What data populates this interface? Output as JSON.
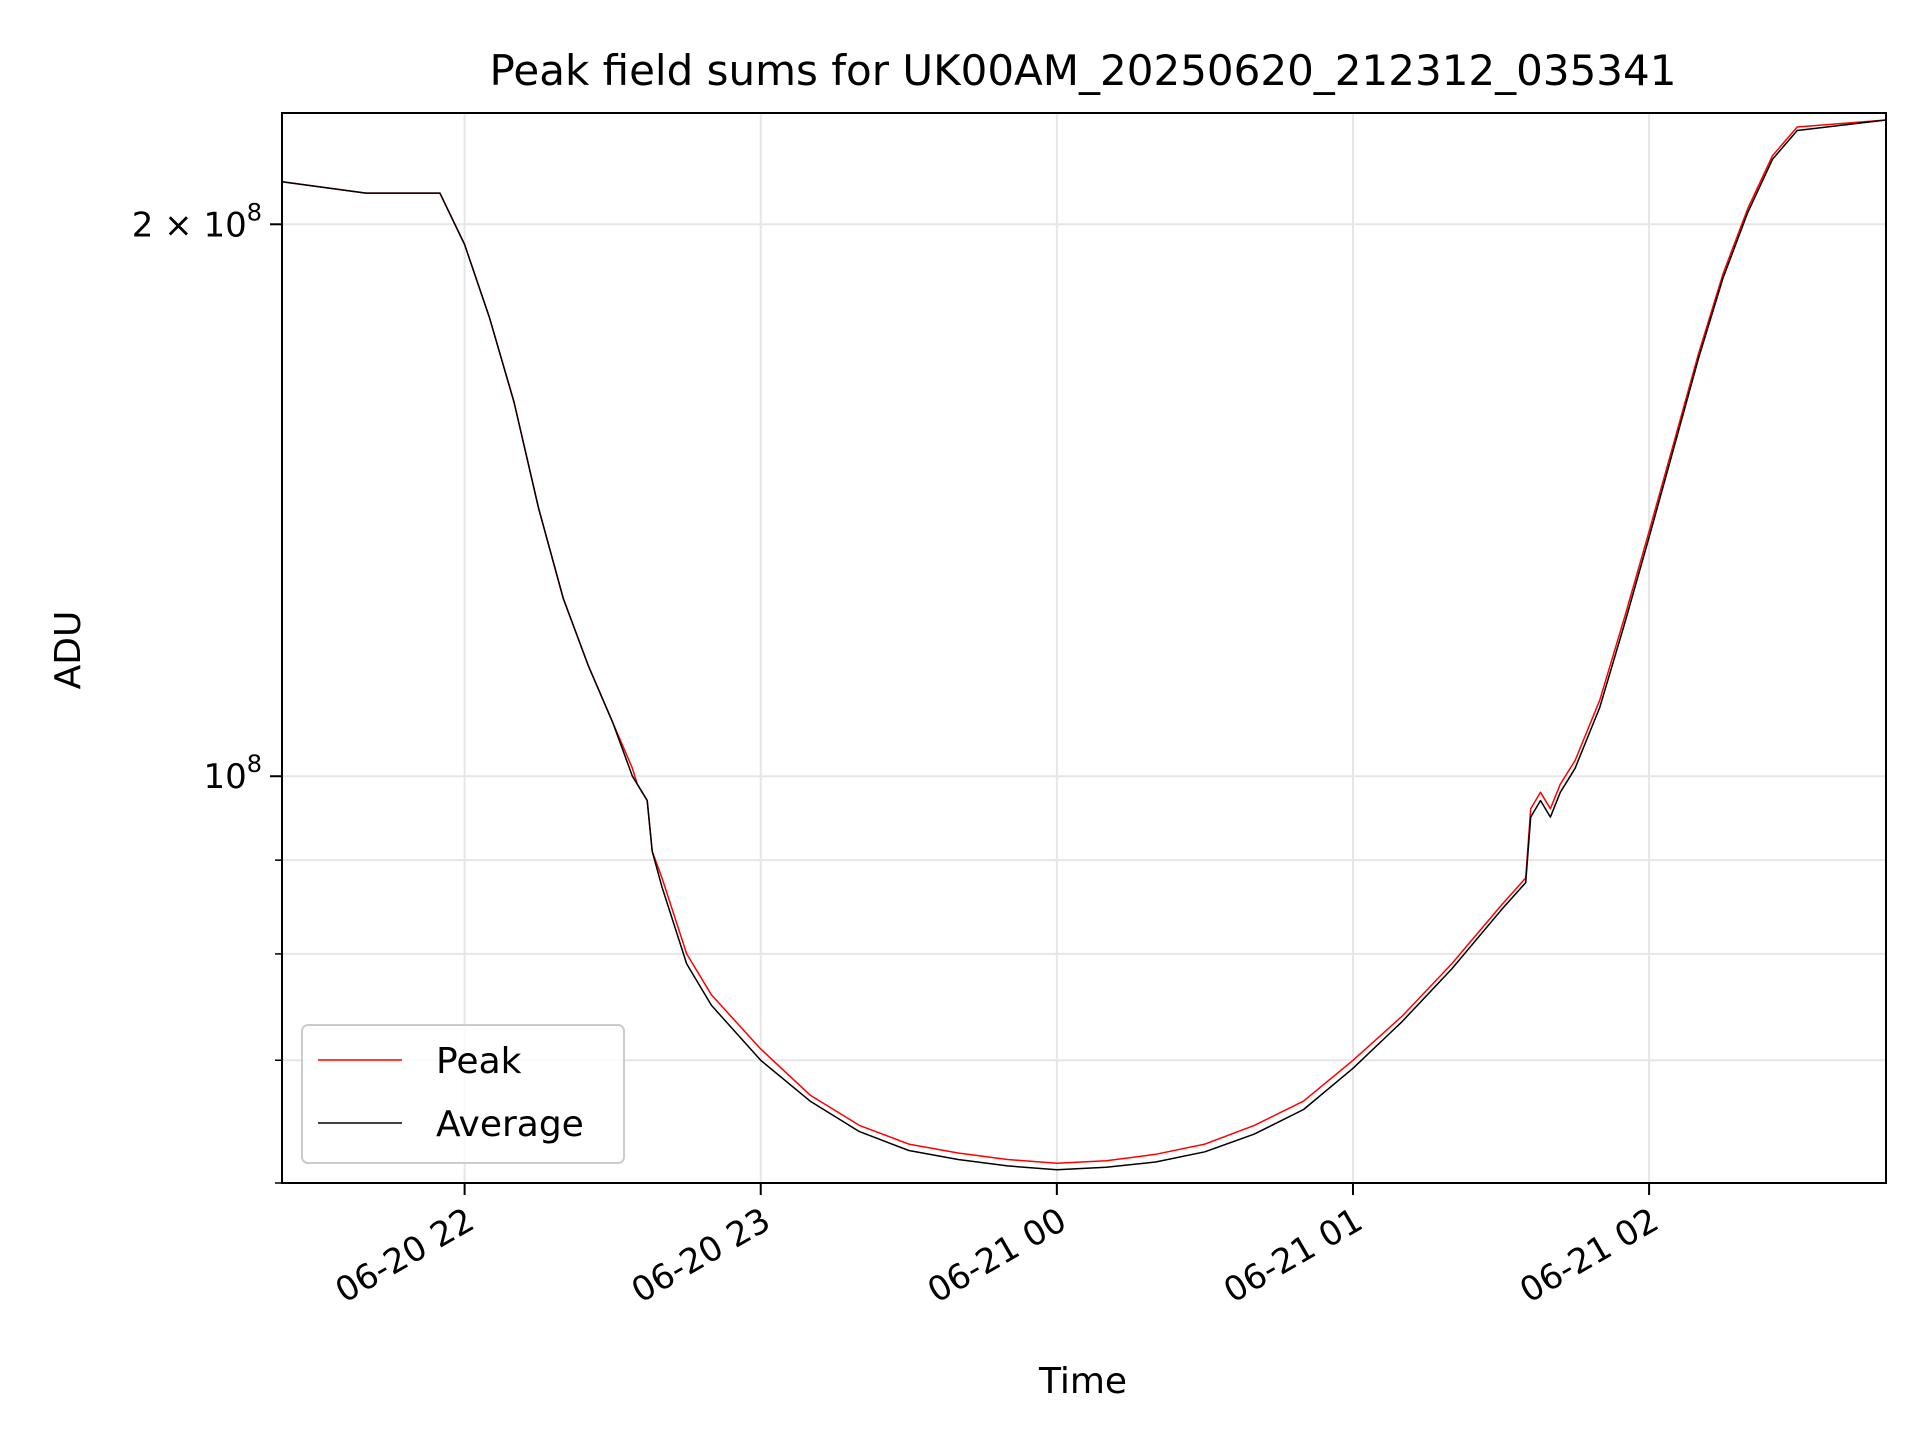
{
  "chart_data": {
    "type": "line",
    "title": "Peak field sums for UK00AM_20250620_212312_035341",
    "xlabel": "Time",
    "ylabel": "ADU",
    "yscale": "log",
    "xlim": [
      "2025-06-20 21:23",
      "2025-06-21 02:48"
    ],
    "ylim": [
      60000000,
      230000000
    ],
    "x_ticks": [
      "06-20 22",
      "06-20 23",
      "06-21 00",
      "06-21 01",
      "06-21 02"
    ],
    "y_ticks": [
      {
        "value": 100000000,
        "label_base": "10",
        "label_exp": "8"
      },
      {
        "value": 200000000,
        "label_base": "2 × 10",
        "label_exp": "8"
      }
    ],
    "grid": true,
    "legend_position": "lower-left",
    "series": [
      {
        "name": "Peak",
        "color": "#ff0000",
        "x": [
          "2025-06-20 21:23",
          "2025-06-20 21:40",
          "2025-06-20 21:55",
          "2025-06-20 22:00",
          "2025-06-20 22:05",
          "2025-06-20 22:10",
          "2025-06-20 22:15",
          "2025-06-20 22:20",
          "2025-06-20 22:25",
          "2025-06-20 22:30",
          "2025-06-20 22:34",
          "2025-06-20 22:35",
          "2025-06-20 22:37",
          "2025-06-20 22:38",
          "2025-06-20 22:40",
          "2025-06-20 22:45",
          "2025-06-20 22:50",
          "2025-06-20 23:00",
          "2025-06-20 23:10",
          "2025-06-20 23:20",
          "2025-06-20 23:30",
          "2025-06-20 23:40",
          "2025-06-20 23:50",
          "2025-06-21 00:00",
          "2025-06-21 00:10",
          "2025-06-21 00:20",
          "2025-06-21 00:30",
          "2025-06-21 00:40",
          "2025-06-21 00:50",
          "2025-06-21 01:00",
          "2025-06-21 01:10",
          "2025-06-21 01:20",
          "2025-06-21 01:30",
          "2025-06-21 01:35",
          "2025-06-21 01:36",
          "2025-06-21 01:38",
          "2025-06-21 01:40",
          "2025-06-21 01:42",
          "2025-06-21 01:45",
          "2025-06-21 01:50",
          "2025-06-21 01:55",
          "2025-06-21 02:00",
          "2025-06-21 02:05",
          "2025-06-21 02:10",
          "2025-06-21 02:15",
          "2025-06-21 02:20",
          "2025-06-21 02:25",
          "2025-06-21 02:30",
          "2025-06-21 02:48"
        ],
        "values": [
          211000000,
          208000000,
          208000000,
          195000000,
          178000000,
          160000000,
          140000000,
          125000000,
          115000000,
          107000000,
          101000000,
          99000000,
          97000000,
          91000000,
          88000000,
          80000000,
          76000000,
          71000000,
          67000000,
          64500000,
          63000000,
          62300000,
          61800000,
          61500000,
          61700000,
          62200000,
          63000000,
          64500000,
          66500000,
          70000000,
          74000000,
          79000000,
          85000000,
          88000000,
          96000000,
          98000000,
          96000000,
          99000000,
          102000000,
          110000000,
          122000000,
          136000000,
          152000000,
          170000000,
          188000000,
          204000000,
          218000000,
          226000000,
          228000000
        ]
      },
      {
        "name": "Average",
        "color": "#000000",
        "x": [
          "2025-06-20 21:23",
          "2025-06-20 21:40",
          "2025-06-20 21:55",
          "2025-06-20 22:00",
          "2025-06-20 22:05",
          "2025-06-20 22:10",
          "2025-06-20 22:15",
          "2025-06-20 22:20",
          "2025-06-20 22:25",
          "2025-06-20 22:30",
          "2025-06-20 22:34",
          "2025-06-20 22:35",
          "2025-06-20 22:37",
          "2025-06-20 22:38",
          "2025-06-20 22:40",
          "2025-06-20 22:45",
          "2025-06-20 22:50",
          "2025-06-20 23:00",
          "2025-06-20 23:10",
          "2025-06-20 23:20",
          "2025-06-20 23:30",
          "2025-06-20 23:40",
          "2025-06-20 23:50",
          "2025-06-21 00:00",
          "2025-06-21 00:10",
          "2025-06-21 00:20",
          "2025-06-21 00:30",
          "2025-06-21 00:40",
          "2025-06-21 00:50",
          "2025-06-21 01:00",
          "2025-06-21 01:10",
          "2025-06-21 01:20",
          "2025-06-21 01:30",
          "2025-06-21 01:35",
          "2025-06-21 01:36",
          "2025-06-21 01:38",
          "2025-06-21 01:40",
          "2025-06-21 01:42",
          "2025-06-21 01:45",
          "2025-06-21 01:50",
          "2025-06-21 01:55",
          "2025-06-21 02:00",
          "2025-06-21 02:05",
          "2025-06-21 02:10",
          "2025-06-21 02:15",
          "2025-06-21 02:20",
          "2025-06-21 02:25",
          "2025-06-21 02:30",
          "2025-06-21 02:48"
        ],
        "values": [
          211000000,
          208000000,
          208000000,
          195000000,
          178000000,
          160000000,
          140000000,
          125000000,
          115000000,
          107000000,
          100000000,
          99000000,
          97000000,
          91000000,
          87000000,
          79000000,
          75000000,
          70000000,
          66500000,
          64000000,
          62500000,
          61800000,
          61300000,
          61000000,
          61200000,
          61600000,
          62400000,
          63800000,
          65800000,
          69300000,
          73500000,
          78500000,
          84500000,
          87500000,
          95000000,
          97000000,
          95000000,
          98000000,
          101000000,
          109000000,
          121000000,
          135000000,
          151000000,
          169000000,
          187000000,
          203000000,
          217000000,
          225000000,
          228000000
        ]
      }
    ]
  }
}
